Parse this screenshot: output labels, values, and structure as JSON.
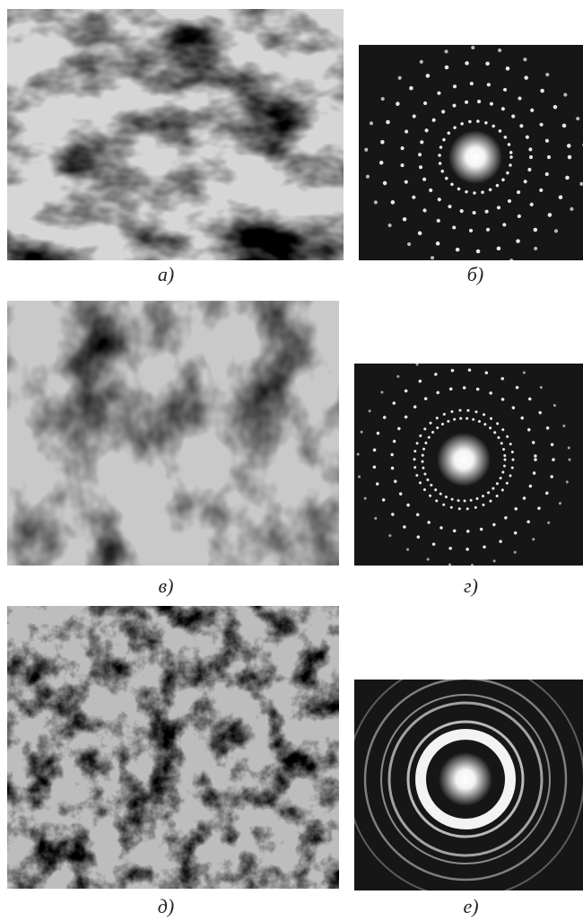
{
  "panels": [
    {
      "label": "а)"
    },
    {
      "label": "б)"
    },
    {
      "label": "в)"
    },
    {
      "label": "г)"
    },
    {
      "label": "д)"
    },
    {
      "label": "е)"
    }
  ]
}
